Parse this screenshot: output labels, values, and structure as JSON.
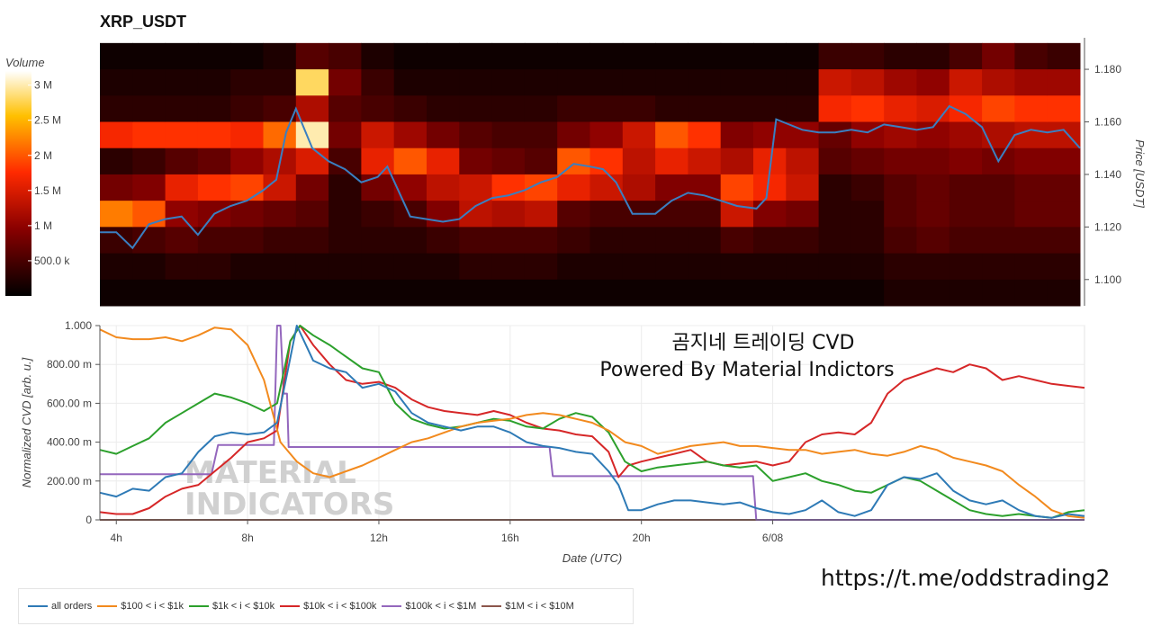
{
  "title": "XRP_USDT",
  "colorbar": {
    "title": "Volume",
    "ticks": [
      {
        "label": "3 M",
        "value": 3000000
      },
      {
        "label": "2.5 M",
        "value": 2500000
      },
      {
        "label": "2 M",
        "value": 2000000
      },
      {
        "label": "1.5 M",
        "value": 1500000
      },
      {
        "label": "1 M",
        "value": 1000000
      },
      {
        "label": "500.0 k",
        "value": 500000
      }
    ],
    "max": 3200000
  },
  "overlay_text": [
    "곰지네 트레이딩 CVD",
    "Powered By Material Indictors"
  ],
  "watermark": [
    "MATERIAL",
    "INDICATORS"
  ],
  "url": "https://t.me/oddstrading2",
  "chart_data": [
    {
      "type": "heatmap",
      "title": "XRP_USDT",
      "ylabel": "Price [USDT]",
      "ylim": [
        1.09,
        1.192
      ],
      "xlim": [
        3.5,
        33.5
      ],
      "yticks": [
        {
          "label": "1.180",
          "value": 1.18
        },
        {
          "label": "1.160",
          "value": 1.16
        },
        {
          "label": "1.140",
          "value": 1.14
        },
        {
          "label": "1.120",
          "value": 1.12
        },
        {
          "label": "1.100",
          "value": 1.1
        }
      ],
      "price_levels": [
        1.185,
        1.175,
        1.165,
        1.155,
        1.145,
        1.135,
        1.125,
        1.115,
        1.105,
        1.095
      ],
      "volume_by_hour_column": [
        [
          0.1,
          0.2,
          0.3,
          1.7,
          0.3,
          0.8,
          2.2,
          0.4,
          0.2,
          0.1
        ],
        [
          0.1,
          0.2,
          0.3,
          1.8,
          0.4,
          0.9,
          2.0,
          0.5,
          0.2,
          0.1
        ],
        [
          0.1,
          0.2,
          0.3,
          1.8,
          0.6,
          1.6,
          1.0,
          0.6,
          0.3,
          0.1
        ],
        [
          0.1,
          0.2,
          0.3,
          1.8,
          0.7,
          1.8,
          0.9,
          0.5,
          0.3,
          0.1
        ],
        [
          0.1,
          0.3,
          0.4,
          1.7,
          1.0,
          1.9,
          0.8,
          0.5,
          0.2,
          0.1
        ],
        [
          0.2,
          0.3,
          0.5,
          2.1,
          1.2,
          1.4,
          0.7,
          0.4,
          0.2,
          0.1
        ],
        [
          0.6,
          2.8,
          1.2,
          3.0,
          1.5,
          0.8,
          0.6,
          0.4,
          0.2,
          0.1
        ],
        [
          0.5,
          0.8,
          0.6,
          0.8,
          0.5,
          0.3,
          0.3,
          0.3,
          0.2,
          0.1
        ],
        [
          0.2,
          0.4,
          0.5,
          1.4,
          1.6,
          0.8,
          0.4,
          0.3,
          0.2,
          0.1
        ],
        [
          0.1,
          0.2,
          0.4,
          1.1,
          2.0,
          1.0,
          0.5,
          0.3,
          0.2,
          0.1
        ],
        [
          0.1,
          0.2,
          0.3,
          0.8,
          1.6,
          1.3,
          0.9,
          0.4,
          0.2,
          0.1
        ],
        [
          0.1,
          0.2,
          0.3,
          0.6,
          0.8,
          1.4,
          1.3,
          0.5,
          0.3,
          0.1
        ],
        [
          0.1,
          0.2,
          0.3,
          0.5,
          0.7,
          1.8,
          1.2,
          0.5,
          0.3,
          0.1
        ],
        [
          0.1,
          0.2,
          0.3,
          0.5,
          0.6,
          1.9,
          1.3,
          0.5,
          0.3,
          0.1
        ],
        [
          0.1,
          0.2,
          0.4,
          0.8,
          2.0,
          1.6,
          0.6,
          0.4,
          0.2,
          0.1
        ],
        [
          0.1,
          0.2,
          0.4,
          1.0,
          1.8,
          1.4,
          0.5,
          0.3,
          0.2,
          0.1
        ],
        [
          0.1,
          0.2,
          0.4,
          1.4,
          1.3,
          1.2,
          0.5,
          0.3,
          0.2,
          0.1
        ],
        [
          0.1,
          0.2,
          0.3,
          2.0,
          1.6,
          0.9,
          0.5,
          0.3,
          0.2,
          0.1
        ],
        [
          0.1,
          0.2,
          0.3,
          1.8,
          1.4,
          0.9,
          0.5,
          0.3,
          0.2,
          0.1
        ],
        [
          0.1,
          0.2,
          0.3,
          0.9,
          1.2,
          1.9,
          1.4,
          0.5,
          0.2,
          0.1
        ],
        [
          0.1,
          0.2,
          0.3,
          1.0,
          1.6,
          1.7,
          0.9,
          0.4,
          0.2,
          0.1
        ],
        [
          0.1,
          0.2,
          0.3,
          1.0,
          1.3,
          1.4,
          0.8,
          0.4,
          0.2,
          0.1
        ],
        [
          0.4,
          1.4,
          1.7,
          0.7,
          0.6,
          0.3,
          0.3,
          0.3,
          0.2,
          0.1
        ],
        [
          0.4,
          1.3,
          1.8,
          1.0,
          0.7,
          0.4,
          0.3,
          0.3,
          0.2,
          0.1
        ],
        [
          0.3,
          1.1,
          1.6,
          1.1,
          0.8,
          0.6,
          0.6,
          0.5,
          0.3,
          0.2
        ],
        [
          0.3,
          1.0,
          1.5,
          1.0,
          0.8,
          0.7,
          0.7,
          0.6,
          0.3,
          0.2
        ],
        [
          0.5,
          1.4,
          1.7,
          1.1,
          0.9,
          0.6,
          0.6,
          0.5,
          0.3,
          0.2
        ],
        [
          0.8,
          1.2,
          1.9,
          1.2,
          0.8,
          0.6,
          0.6,
          0.5,
          0.3,
          0.2
        ],
        [
          0.5,
          1.1,
          1.8,
          1.3,
          0.9,
          0.7,
          0.7,
          0.5,
          0.3,
          0.2
        ],
        [
          0.4,
          1.1,
          1.8,
          1.3,
          0.9,
          0.7,
          0.7,
          0.5,
          0.3,
          0.2
        ]
      ],
      "price_line": {
        "x": [
          3.5,
          4,
          4.5,
          5,
          5.5,
          6,
          6.5,
          7,
          7.5,
          8,
          8.5,
          8.9,
          9.2,
          9.5,
          10,
          10.5,
          11,
          11.5,
          12,
          12.3,
          13,
          13.5,
          14,
          14.5,
          15,
          15.5,
          16,
          16.5,
          17,
          17.5,
          18,
          18.5,
          18.9,
          19.3,
          19.8,
          20.5,
          21,
          21.5,
          22,
          22.5,
          23,
          23.6,
          23.9,
          24.2,
          25,
          25.5,
          26,
          26.5,
          27,
          27.5,
          28,
          28.5,
          29,
          29.5,
          30,
          30.5,
          31,
          31.5,
          32,
          32.5,
          33,
          33.5
        ],
        "y": [
          1.118,
          1.118,
          1.112,
          1.121,
          1.123,
          1.124,
          1.117,
          1.125,
          1.128,
          1.13,
          1.134,
          1.138,
          1.156,
          1.165,
          1.15,
          1.145,
          1.142,
          1.137,
          1.139,
          1.143,
          1.124,
          1.123,
          1.122,
          1.123,
          1.128,
          1.131,
          1.132,
          1.134,
          1.137,
          1.139,
          1.144,
          1.143,
          1.142,
          1.137,
          1.125,
          1.125,
          1.13,
          1.133,
          1.132,
          1.13,
          1.128,
          1.127,
          1.131,
          1.161,
          1.157,
          1.156,
          1.156,
          1.157,
          1.156,
          1.159,
          1.158,
          1.157,
          1.158,
          1.166,
          1.163,
          1.158,
          1.145,
          1.155,
          1.157,
          1.156,
          1.157,
          1.15
        ],
        "color": "#3a7fc1"
      }
    },
    {
      "type": "line",
      "xlabel": "Date (UTC)",
      "ylabel": "Normalized CVD [arb. u.]",
      "ylim": [
        0,
        1.0
      ],
      "xlim": [
        3.5,
        33.5
      ],
      "xticks": [
        {
          "label": "4h",
          "value": 4
        },
        {
          "label": "8h",
          "value": 8
        },
        {
          "label": "12h",
          "value": 12
        },
        {
          "label": "16h",
          "value": 16
        },
        {
          "label": "20h",
          "value": 20
        },
        {
          "label": "6/08",
          "value": 24
        }
      ],
      "yticks": [
        {
          "label": "1.000",
          "value": 1.0
        },
        {
          "label": "800.00 m",
          "value": 0.8
        },
        {
          "label": "600.00 m",
          "value": 0.6
        },
        {
          "label": "400.00 m",
          "value": 0.4
        },
        {
          "label": "200.00 m",
          "value": 0.2
        },
        {
          "label": "0",
          "value": 0
        }
      ],
      "series": [
        {
          "name": "all orders",
          "color": "#2e7ab6",
          "x": [
            3.5,
            4,
            4.5,
            5,
            5.5,
            6,
            6.5,
            7,
            7.5,
            8,
            8.5,
            8.9,
            9.2,
            9.5,
            10,
            10.5,
            11,
            11.5,
            12,
            12.5,
            13,
            13.5,
            14,
            14.5,
            15,
            15.5,
            16,
            16.5,
            17,
            17.5,
            18,
            18.5,
            19,
            19.3,
            19.6,
            20,
            20.5,
            21,
            21.5,
            22,
            22.5,
            23,
            23.5,
            24,
            24.5,
            25,
            25.5,
            26,
            26.5,
            27,
            27.5,
            28,
            28.5,
            29,
            29.5,
            30,
            30.5,
            31,
            31.5,
            32,
            32.5,
            33,
            33.5
          ],
          "y": [
            0.14,
            0.12,
            0.16,
            0.15,
            0.22,
            0.24,
            0.35,
            0.43,
            0.45,
            0.44,
            0.45,
            0.5,
            0.75,
            1.0,
            0.82,
            0.78,
            0.76,
            0.68,
            0.7,
            0.66,
            0.55,
            0.5,
            0.48,
            0.46,
            0.48,
            0.48,
            0.45,
            0.4,
            0.38,
            0.37,
            0.35,
            0.34,
            0.25,
            0.18,
            0.05,
            0.05,
            0.08,
            0.1,
            0.1,
            0.09,
            0.08,
            0.09,
            0.06,
            0.04,
            0.03,
            0.05,
            0.1,
            0.04,
            0.02,
            0.05,
            0.18,
            0.22,
            0.21,
            0.24,
            0.15,
            0.1,
            0.08,
            0.1,
            0.05,
            0.02,
            0.01,
            0.03,
            0.02
          ]
        },
        {
          "name": "$100 < i < $1k",
          "color": "#f28a1e",
          "x": [
            3.5,
            4,
            4.5,
            5,
            5.5,
            6,
            6.5,
            7,
            7.5,
            8,
            8.5,
            9,
            9.5,
            10,
            10.5,
            11,
            11.5,
            12,
            12.5,
            13,
            13.5,
            14,
            14.5,
            15,
            15.5,
            16,
            16.5,
            17,
            17.5,
            18,
            18.5,
            19,
            19.5,
            20,
            20.5,
            21,
            21.5,
            22,
            22.5,
            23,
            23.5,
            24,
            24.5,
            25,
            25.5,
            26,
            26.5,
            27,
            27.5,
            28,
            28.5,
            29,
            29.5,
            30,
            30.5,
            31,
            31.5,
            32,
            32.5,
            33,
            33.5
          ],
          "y": [
            0.98,
            0.94,
            0.93,
            0.93,
            0.94,
            0.92,
            0.95,
            0.99,
            0.98,
            0.9,
            0.72,
            0.4,
            0.3,
            0.24,
            0.22,
            0.25,
            0.28,
            0.32,
            0.36,
            0.4,
            0.42,
            0.45,
            0.48,
            0.5,
            0.51,
            0.52,
            0.54,
            0.55,
            0.54,
            0.52,
            0.5,
            0.46,
            0.4,
            0.38,
            0.34,
            0.36,
            0.38,
            0.39,
            0.4,
            0.38,
            0.38,
            0.37,
            0.36,
            0.36,
            0.34,
            0.35,
            0.36,
            0.34,
            0.33,
            0.35,
            0.38,
            0.36,
            0.32,
            0.3,
            0.28,
            0.25,
            0.18,
            0.12,
            0.05,
            0.02,
            0.01
          ]
        },
        {
          "name": "$1k < i < $10k",
          "color": "#2ca02c",
          "x": [
            3.5,
            4,
            4.5,
            5,
            5.5,
            6,
            6.5,
            7,
            7.5,
            8,
            8.5,
            8.9,
            9.3,
            9.6,
            10,
            10.5,
            11,
            11.5,
            12,
            12.5,
            13,
            13.5,
            14,
            14.5,
            15,
            15.5,
            16,
            16.5,
            17,
            17.5,
            18,
            18.5,
            19,
            19.5,
            20,
            20.5,
            21,
            21.5,
            22,
            22.5,
            23,
            23.5,
            24,
            24.5,
            25,
            25.5,
            26,
            26.5,
            27,
            27.5,
            28,
            28.5,
            29,
            29.5,
            30,
            30.5,
            31,
            31.5,
            32,
            32.5,
            33,
            33.5
          ],
          "y": [
            0.36,
            0.34,
            0.38,
            0.42,
            0.5,
            0.55,
            0.6,
            0.65,
            0.63,
            0.6,
            0.56,
            0.6,
            0.92,
            1.0,
            0.95,
            0.9,
            0.84,
            0.78,
            0.76,
            0.6,
            0.52,
            0.49,
            0.47,
            0.48,
            0.5,
            0.52,
            0.51,
            0.48,
            0.47,
            0.52,
            0.55,
            0.53,
            0.45,
            0.3,
            0.25,
            0.27,
            0.28,
            0.29,
            0.3,
            0.28,
            0.27,
            0.28,
            0.2,
            0.22,
            0.24,
            0.2,
            0.18,
            0.15,
            0.14,
            0.18,
            0.22,
            0.2,
            0.15,
            0.1,
            0.05,
            0.03,
            0.02,
            0.03,
            0.02,
            0.01,
            0.04,
            0.05
          ]
        },
        {
          "name": "$10k < i < $100k",
          "color": "#d62728",
          "x": [
            3.5,
            4,
            4.5,
            5,
            5.5,
            6,
            6.5,
            7,
            7.5,
            8,
            8.5,
            8.9,
            9.3,
            9.6,
            10,
            10.5,
            11,
            11.5,
            12,
            12.5,
            13,
            13.5,
            14,
            14.5,
            15,
            15.5,
            16,
            16.5,
            17,
            17.5,
            18,
            18.5,
            19,
            19.3,
            19.6,
            20,
            20.5,
            21,
            21.5,
            22,
            22.5,
            23,
            23.5,
            24,
            24.5,
            25,
            25.5,
            26,
            26.5,
            27,
            27.5,
            28,
            28.5,
            29,
            29.5,
            30,
            30.5,
            31,
            31.5,
            32,
            32.5,
            33,
            33.5
          ],
          "y": [
            0.04,
            0.03,
            0.03,
            0.06,
            0.12,
            0.16,
            0.18,
            0.25,
            0.32,
            0.4,
            0.42,
            0.46,
            0.92,
            1.0,
            0.9,
            0.8,
            0.72,
            0.7,
            0.71,
            0.68,
            0.62,
            0.58,
            0.56,
            0.55,
            0.54,
            0.56,
            0.54,
            0.5,
            0.47,
            0.46,
            0.44,
            0.43,
            0.35,
            0.22,
            0.28,
            0.3,
            0.32,
            0.34,
            0.36,
            0.3,
            0.28,
            0.29,
            0.3,
            0.28,
            0.3,
            0.4,
            0.44,
            0.45,
            0.44,
            0.5,
            0.65,
            0.72,
            0.75,
            0.78,
            0.76,
            0.8,
            0.78,
            0.72,
            0.74,
            0.72,
            0.7,
            0.69,
            0.68
          ]
        },
        {
          "name": "$100k < i < $1M",
          "color": "#9467bd",
          "x": [
            3.5,
            6.9,
            7.1,
            8.8,
            8.9,
            9.0,
            9.1,
            9.2,
            9.25,
            17.2,
            17.3,
            23.4,
            23.5,
            24.1,
            33.5
          ],
          "y": [
            0.235,
            0.235,
            0.385,
            0.385,
            1.0,
            1.0,
            0.65,
            0.65,
            0.375,
            0.375,
            0.225,
            0.225,
            0.0,
            0.0,
            0.0
          ]
        },
        {
          "name": "$1M < i < $10M",
          "color": "#8c564b",
          "x": [
            3.5,
            33.5
          ],
          "y": [
            0.0,
            0.0
          ]
        }
      ]
    }
  ]
}
